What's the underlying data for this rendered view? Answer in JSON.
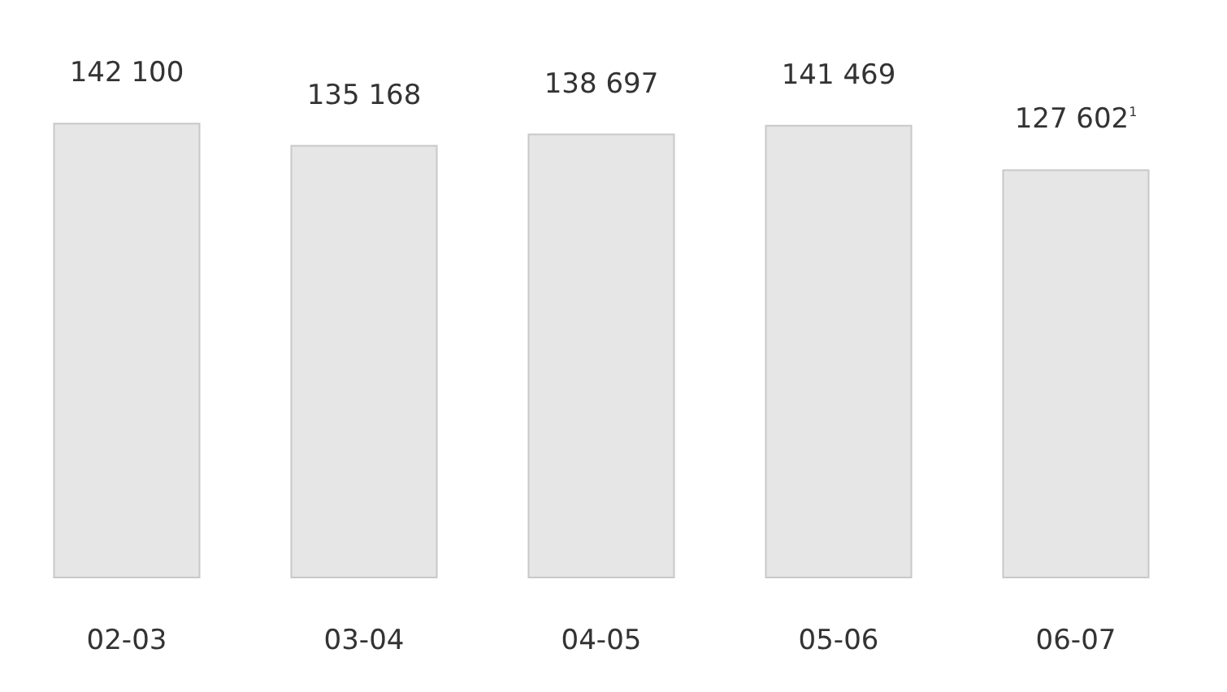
{
  "chart_data": {
    "type": "bar",
    "categories": [
      "02-03",
      "03-04",
      "04-05",
      "05-06",
      "06-07"
    ],
    "values": [
      142100,
      135168,
      138697,
      141469,
      127602
    ],
    "value_labels": [
      "142 100",
      "135 168",
      "138 697",
      "141 469",
      "127 602$^{1}$"
    ],
    "color": "#e6e6e6"
  }
}
